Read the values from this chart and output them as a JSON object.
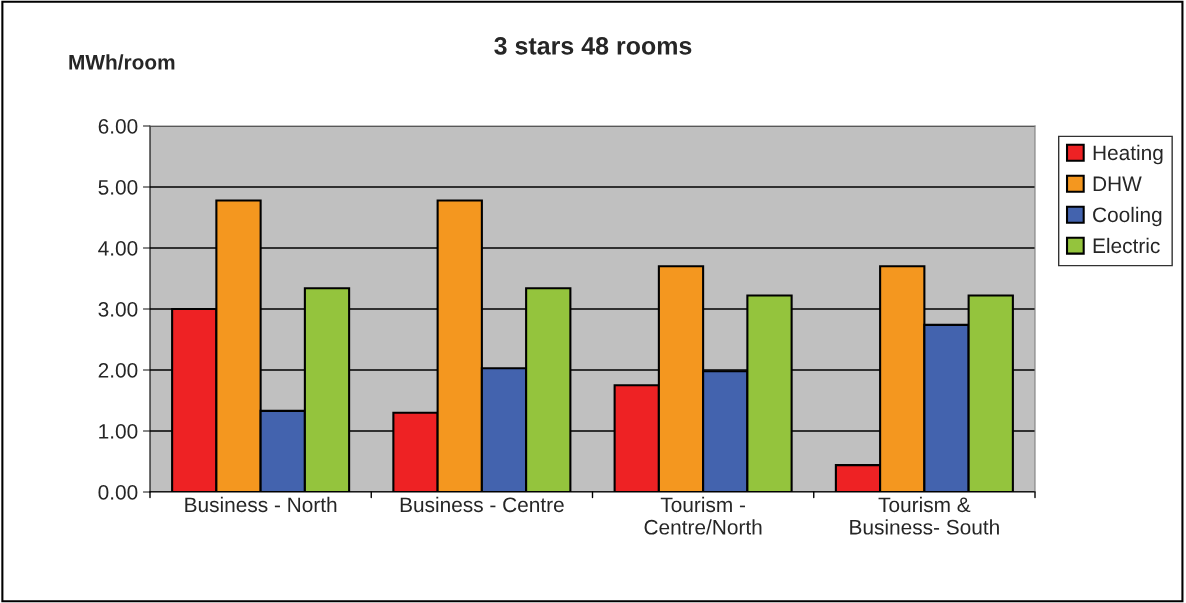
{
  "chart_data": {
    "type": "bar",
    "title": "3 stars 48 rooms",
    "ylabel": "MWh/room",
    "categories": [
      "Business - North",
      "Business - Centre",
      "Tourism -\nCentre/North",
      "Tourism &\nBusiness- South"
    ],
    "series": [
      {
        "name": "Heating",
        "color": "#ee2224",
        "values": [
          3.0,
          1.3,
          1.75,
          0.44
        ]
      },
      {
        "name": "DHW",
        "color": "#f4971f",
        "values": [
          4.78,
          4.78,
          3.7,
          3.7
        ]
      },
      {
        "name": "Cooling",
        "color": "#4363ae",
        "values": [
          1.33,
          2.03,
          1.98,
          2.74
        ]
      },
      {
        "name": "Electric",
        "color": "#94c43d",
        "values": [
          3.34,
          3.34,
          3.22,
          3.22
        ]
      }
    ],
    "ylim": [
      0,
      6
    ],
    "yticks": [
      {
        "value": 0,
        "label": "0.00"
      },
      {
        "value": 1,
        "label": "1.00"
      },
      {
        "value": 2,
        "label": "2.00"
      },
      {
        "value": 3,
        "label": "3.00"
      },
      {
        "value": 4,
        "label": "4.00"
      },
      {
        "value": 5,
        "label": "5.00"
      },
      {
        "value": 6,
        "label": "6.00"
      }
    ],
    "grid": "y",
    "legend": "right"
  }
}
